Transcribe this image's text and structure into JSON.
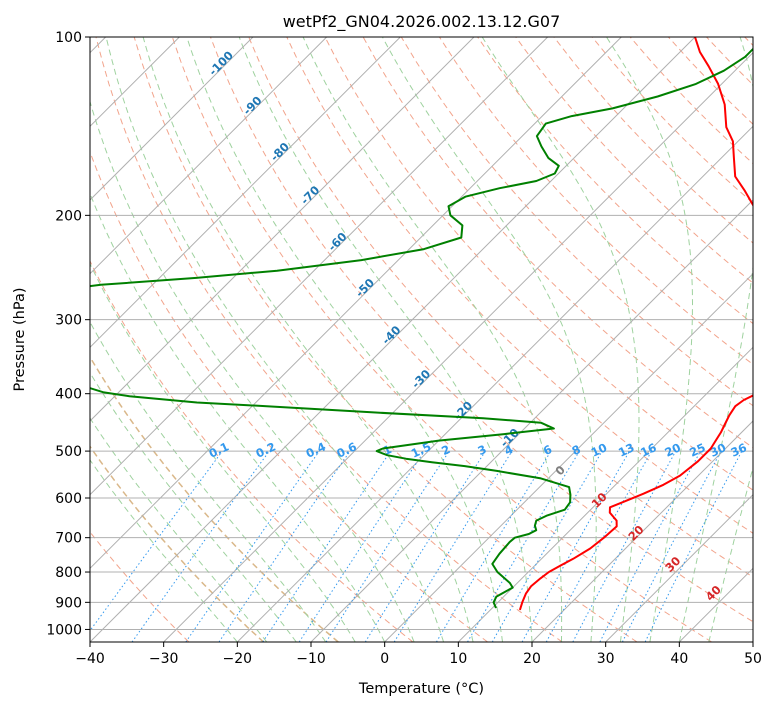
{
  "chart_data": {
    "type": "line",
    "diagram": "skew-T log-P",
    "title": "wetPf2_GN04.2026.002.13.12.G07",
    "xlabel": "Temperature (°C)",
    "ylabel": "Pressure (hPa)",
    "xlim": [
      -40,
      50
    ],
    "ylim": [
      1050,
      100
    ],
    "y_scale": "log",
    "grid": true,
    "x_ticks": [
      "−40",
      "−30",
      "−20",
      "−10",
      "0",
      "10",
      "20",
      "30",
      "40",
      "50"
    ],
    "x_tick_values": [
      -40,
      -30,
      -20,
      -10,
      0,
      10,
      20,
      30,
      40,
      50
    ],
    "y_ticks": [
      "100",
      "200",
      "300",
      "400",
      "500",
      "600",
      "700",
      "800",
      "900",
      "1000"
    ],
    "y_tick_values": [
      100,
      200,
      300,
      400,
      500,
      600,
      700,
      800,
      900,
      1000
    ],
    "series": [
      {
        "role": "temperature",
        "color": "#ff0000",
        "points": [
          [
            927,
            14.0
          ],
          [
            900,
            13.3
          ],
          [
            870,
            12.6
          ],
          [
            845,
            12.3
          ],
          [
            820,
            12.5
          ],
          [
            800,
            12.8
          ],
          [
            780,
            13.5
          ],
          [
            760,
            14.3
          ],
          [
            730,
            15.2
          ],
          [
            700,
            15.6
          ],
          [
            670,
            15.8
          ],
          [
            655,
            15.0
          ],
          [
            645,
            14.0
          ],
          [
            635,
            13.0
          ],
          [
            622,
            12.3
          ],
          [
            610,
            13.3
          ],
          [
            590,
            15.0
          ],
          [
            570,
            16.5
          ],
          [
            550,
            17.5
          ],
          [
            520,
            18.0
          ],
          [
            495,
            18.0
          ],
          [
            480,
            17.6
          ],
          [
            465,
            17.2
          ],
          [
            450,
            16.6
          ],
          [
            435,
            16.0
          ],
          [
            420,
            15.6
          ],
          [
            410,
            15.9
          ],
          [
            400,
            16.8
          ],
          [
            385,
            17.9
          ],
          [
            370,
            19.0
          ],
          [
            352,
            20.4
          ],
          [
            340,
            20.0
          ],
          [
            325,
            18.8
          ],
          [
            305,
            16.3
          ],
          [
            285,
            13.3
          ],
          [
            265,
            9.5
          ],
          [
            245,
            5.2
          ],
          [
            228,
            1.2
          ],
          [
            214,
            -2.2
          ],
          [
            205,
            -5.0
          ],
          [
            195,
            -8.5
          ],
          [
            182,
            -12.3
          ],
          [
            172,
            -15.6
          ],
          [
            160,
            -18.3
          ],
          [
            150,
            -20.7
          ],
          [
            142,
            -23.5
          ],
          [
            130,
            -26.8
          ],
          [
            120,
            -30.5
          ],
          [
            112,
            -34.2
          ],
          [
            106,
            -37.3
          ],
          [
            100,
            -40.0
          ]
        ]
      },
      {
        "role": "dewpoint",
        "color": "#008000",
        "points": [
          [
            920,
            10.5
          ],
          [
            900,
            9.4
          ],
          [
            880,
            9.0
          ],
          [
            865,
            9.5
          ],
          [
            850,
            10.0
          ],
          [
            835,
            9.0
          ],
          [
            800,
            5.8
          ],
          [
            775,
            4.0
          ],
          [
            745,
            3.6
          ],
          [
            712,
            3.4
          ],
          [
            700,
            3.5
          ],
          [
            690,
            4.9
          ],
          [
            680,
            5.4
          ],
          [
            668,
            4.6
          ],
          [
            655,
            4.1
          ],
          [
            642,
            4.9
          ],
          [
            628,
            6.5
          ],
          [
            610,
            6.2
          ],
          [
            592,
            5.2
          ],
          [
            575,
            4.0
          ],
          [
            556,
            -1.0
          ],
          [
            540,
            -8.0
          ],
          [
            530,
            -13.0
          ],
          [
            522,
            -18.0
          ],
          [
            515,
            -22.0
          ],
          [
            508,
            -25.0
          ],
          [
            500,
            -27.0
          ],
          [
            495,
            -26.5
          ],
          [
            480,
            -20.0
          ],
          [
            468,
            -12.0
          ],
          [
            458,
            -6.0
          ],
          [
            448,
            -8.5
          ],
          [
            440,
            -17.0
          ],
          [
            430,
            -33.0
          ],
          [
            420,
            -48.0
          ],
          [
            414,
            -58.0
          ],
          [
            404,
            -68.0
          ],
          [
            398,
            -72.0
          ],
          [
            390,
            -75.0
          ],
          [
            380,
            -80.0
          ],
          [
            370,
            -86.0
          ],
          [
            355,
            -104.0
          ],
          [
            345,
            -113.0
          ],
          [
            338,
            -116.0
          ],
          [
            330,
            -104.0
          ],
          [
            320,
            -95.0
          ],
          [
            308,
            -97.0
          ],
          [
            295,
            -100.0
          ],
          [
            285,
            -103.0
          ],
          [
            278,
            -104.0
          ],
          [
            270,
            -95.0
          ],
          [
            262,
            -87.0
          ],
          [
            255,
            -75.0
          ],
          [
            248,
            -65.0
          ],
          [
            238,
            -55.0
          ],
          [
            228,
            -48.0
          ],
          [
            218,
            -44.5
          ],
          [
            208,
            -46.0
          ],
          [
            200,
            -49.0
          ],
          [
            193,
            -50.5
          ],
          [
            186,
            -49.5
          ],
          [
            180,
            -46.0
          ],
          [
            175,
            -42.0
          ],
          [
            170,
            -40.5
          ],
          [
            165,
            -41.0
          ],
          [
            160,
            -43.5
          ],
          [
            153,
            -46.0
          ],
          [
            147,
            -48.0
          ],
          [
            140,
            -48.5
          ],
          [
            136,
            -46.0
          ],
          [
            132,
            -41.5
          ],
          [
            126,
            -37.0
          ],
          [
            120,
            -33.5
          ],
          [
            114,
            -31.5
          ],
          [
            108,
            -30.5
          ],
          [
            104,
            -30.5
          ],
          [
            100,
            -31.0
          ]
        ]
      }
    ],
    "isotherm_labels": [
      "-100",
      "-90",
      "-80",
      "-70",
      "-60",
      "-50",
      "-40",
      "-30",
      "-20",
      "-10"
    ],
    "isotherm_label_color": "#1f77b4",
    "adiabat_labels": [
      "0",
      "10",
      "20",
      "30",
      "40"
    ],
    "adiabat_label_colors": [
      "#7f7f7f",
      "#d62728",
      "#d62728",
      "#d62728",
      "#d62728"
    ],
    "mixing_ratio_labels": [
      "0.1",
      "0.2",
      "0.4",
      "0.6",
      "1",
      "1.5",
      "2",
      "3",
      "4",
      "6",
      "8",
      "10",
      "13",
      "16",
      "20",
      "25",
      "30",
      "36"
    ],
    "mixing_ratio_values": [
      0.1,
      0.2,
      0.4,
      0.6,
      1,
      1.5,
      2,
      3,
      4,
      6,
      8,
      10,
      13,
      16,
      20,
      25,
      30,
      36
    ],
    "mixing_ratio_label_color": "#3399ee",
    "colors": {
      "isotherm_grid": "#b0b0b0",
      "dry_adiabat": "#f2a48c",
      "moist_adiabat": "#9fd29f",
      "dry_adiabat_reference": "#d9b88a",
      "mixing_ratio": "#3399ee",
      "temperature": "#ff0000",
      "dewpoint": "#008000"
    }
  }
}
